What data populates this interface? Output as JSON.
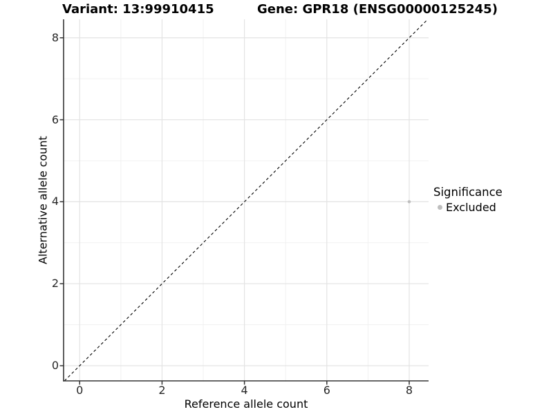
{
  "header": {
    "variant_label": "Variant: 13:99910415",
    "gene_label": "Gene: GPR18 (ENSG00000125245)"
  },
  "axes": {
    "x_title": "Reference allele count",
    "y_title": "Alternative allele count"
  },
  "legend": {
    "title": "Significance",
    "items": [
      {
        "label": "Excluded",
        "color": "#bebebe"
      }
    ]
  },
  "chart_data": {
    "type": "scatter",
    "title": "Variant: 13:99910415   Gene: GPR18 (ENSG00000125245)",
    "xlabel": "Reference allele count",
    "ylabel": "Alternative allele count",
    "xlim": [
      -0.39,
      8.47
    ],
    "ylim": [
      -0.37,
      8.45
    ],
    "x_ticks": [
      0,
      2,
      4,
      6,
      8
    ],
    "y_ticks": [
      0,
      2,
      4,
      6,
      8
    ],
    "x_minor_ticks": [
      1,
      3,
      5,
      7
    ],
    "y_minor_ticks": [
      1,
      3,
      5,
      7
    ],
    "grid": true,
    "legend_position": "right",
    "points": [
      {
        "x": 8,
        "y": 4,
        "series": "Excluded",
        "color": "#bebebe"
      }
    ],
    "reference_line": {
      "equation": "y = x",
      "slope": 1,
      "intercept": 0,
      "style": "dashed",
      "color": "#000000"
    },
    "style": {
      "axis_color": "#333333",
      "grid_major_color": "#e3e3e3",
      "grid_minor_color": "#f1f1f1",
      "panel_background": "#ffffff"
    }
  }
}
